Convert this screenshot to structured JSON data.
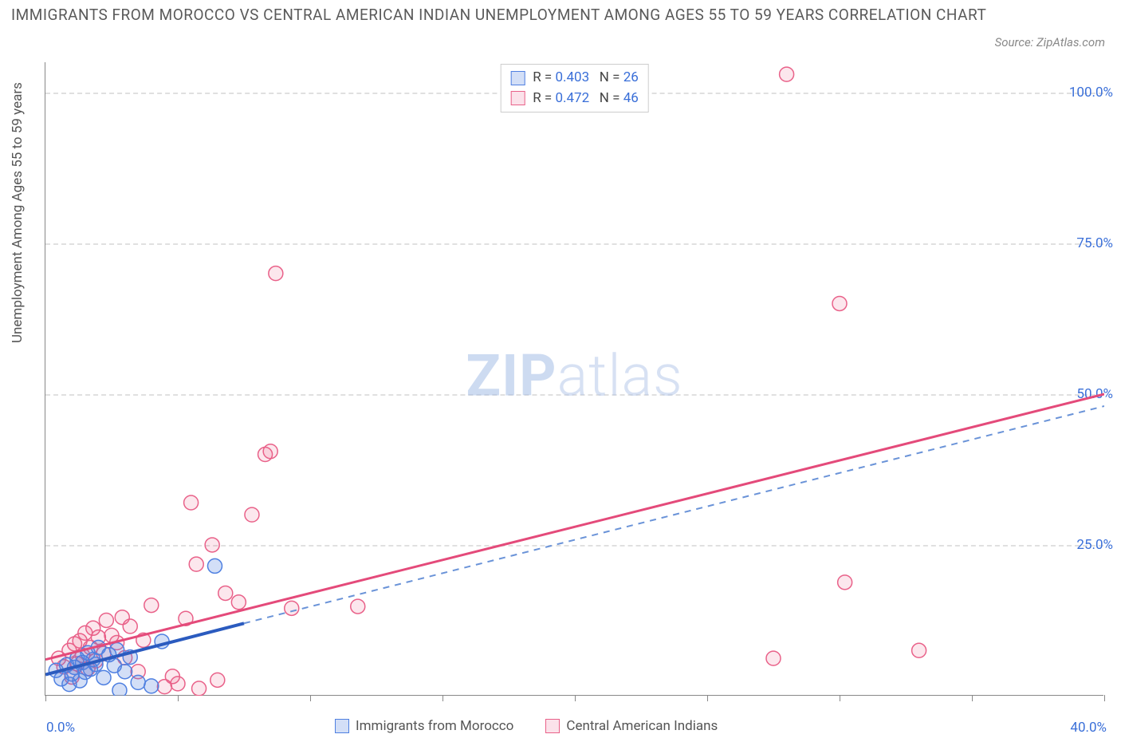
{
  "title": "IMMIGRANTS FROM MOROCCO VS CENTRAL AMERICAN INDIAN UNEMPLOYMENT AMONG AGES 55 TO 59 YEARS CORRELATION CHART",
  "source": "Source: ZipAtlas.com",
  "y_axis_label": "Unemployment Among Ages 55 to 59 years",
  "watermark_a": "ZIP",
  "watermark_b": "atlas",
  "chart": {
    "type": "scatter",
    "background_color": "#ffffff",
    "grid_color": "#e0e0e0",
    "axis_color": "#888888",
    "value_color": "#3a6fd8",
    "xlim": [
      0,
      40
    ],
    "ylim": [
      0,
      105
    ],
    "x_ticks": [
      0,
      5,
      10,
      15,
      20,
      25,
      30,
      35,
      40
    ],
    "y_grid": [
      25,
      50,
      75,
      100
    ],
    "y_tick_labels": [
      "25.0%",
      "50.0%",
      "75.0%",
      "100.0%"
    ],
    "x_min_label": "0.0%",
    "x_max_label": "40.0%",
    "series": {
      "blue": {
        "label": "Immigrants from Morocco",
        "R": "0.403",
        "N": "26",
        "point_fill": "rgba(79,128,225,0.25)",
        "point_stroke": "#4f80e1",
        "marker_radius": 9,
        "line_color": "#2b5bbf",
        "dash_color": "#6a93d8",
        "fit_solid": {
          "x1": 0,
          "y1": 3.5,
          "x2": 7.5,
          "y2": 12
        },
        "fit_dashed": {
          "x1": 7.5,
          "y1": 12,
          "x2": 40,
          "y2": 48
        },
        "points": [
          [
            0.4,
            4.2
          ],
          [
            0.6,
            2.8
          ],
          [
            0.8,
            5.1
          ],
          [
            0.9,
            1.9
          ],
          [
            1.0,
            3.6
          ],
          [
            1.1,
            4.7
          ],
          [
            1.2,
            6.2
          ],
          [
            1.3,
            2.5
          ],
          [
            1.4,
            5.5
          ],
          [
            1.5,
            3.9
          ],
          [
            1.6,
            7.1
          ],
          [
            1.7,
            4.4
          ],
          [
            1.8,
            6.0
          ],
          [
            1.9,
            5.2
          ],
          [
            2.0,
            8.0
          ],
          [
            2.2,
            3.0
          ],
          [
            2.4,
            6.8
          ],
          [
            2.6,
            5.0
          ],
          [
            2.7,
            7.6
          ],
          [
            2.8,
            0.9
          ],
          [
            3.0,
            4.0
          ],
          [
            3.2,
            6.4
          ],
          [
            3.5,
            2.2
          ],
          [
            4.0,
            1.6
          ],
          [
            4.4,
            9.0
          ],
          [
            6.4,
            21.5
          ]
        ]
      },
      "pink": {
        "label": "Central American Indians",
        "R": "0.472",
        "N": "46",
        "point_fill": "rgba(233,97,137,0.15)",
        "point_stroke": "#e96189",
        "marker_radius": 9,
        "line_color": "#e44a7a",
        "fit_solid": {
          "x1": 0,
          "y1": 6,
          "x2": 40,
          "y2": 50
        },
        "points": [
          [
            0.5,
            6.2
          ],
          [
            0.7,
            4.8
          ],
          [
            0.9,
            7.5
          ],
          [
            1.0,
            3.1
          ],
          [
            1.1,
            8.6
          ],
          [
            1.2,
            5.3
          ],
          [
            1.3,
            9.1
          ],
          [
            1.4,
            6.7
          ],
          [
            1.5,
            10.4
          ],
          [
            1.6,
            4.5
          ],
          [
            1.7,
            8.0
          ],
          [
            1.8,
            11.2
          ],
          [
            1.9,
            5.8
          ],
          [
            2.0,
            9.7
          ],
          [
            2.2,
            7.0
          ],
          [
            2.3,
            12.5
          ],
          [
            2.5,
            10.0
          ],
          [
            2.7,
            8.8
          ],
          [
            2.9,
            13.0
          ],
          [
            3.0,
            6.3
          ],
          [
            3.2,
            11.5
          ],
          [
            3.5,
            4.0
          ],
          [
            3.7,
            9.2
          ],
          [
            4.0,
            15.0
          ],
          [
            4.5,
            1.5
          ],
          [
            4.8,
            3.2
          ],
          [
            5.0,
            2.0
          ],
          [
            5.3,
            12.8
          ],
          [
            5.5,
            32.0
          ],
          [
            5.7,
            21.8
          ],
          [
            5.8,
            1.2
          ],
          [
            6.3,
            25.0
          ],
          [
            6.5,
            2.6
          ],
          [
            6.8,
            17.0
          ],
          [
            7.3,
            15.5
          ],
          [
            7.8,
            30.0
          ],
          [
            8.3,
            40.0
          ],
          [
            8.5,
            40.5
          ],
          [
            8.7,
            70.0
          ],
          [
            9.3,
            14.5
          ],
          [
            11.8,
            14.8
          ],
          [
            27.5,
            6.2
          ],
          [
            28.0,
            103.0
          ],
          [
            30.0,
            65.0
          ],
          [
            30.2,
            18.8
          ],
          [
            33.0,
            7.5
          ]
        ]
      }
    }
  }
}
